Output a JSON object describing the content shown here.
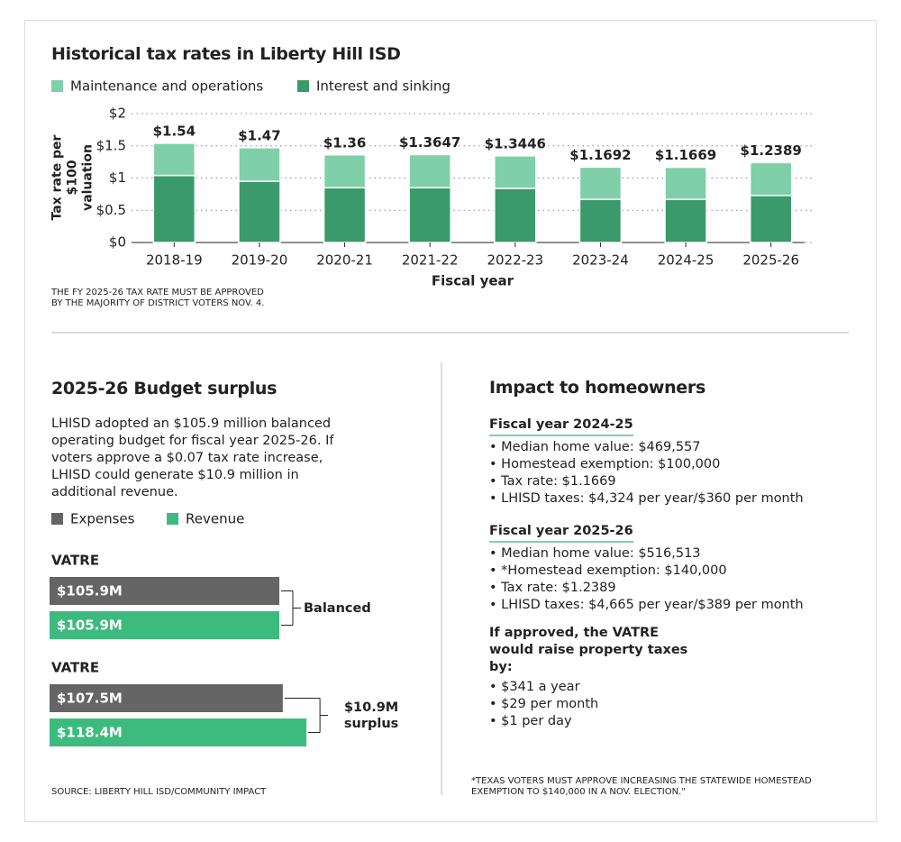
{
  "chart_data": [
    {
      "type": "stacked-bar",
      "title": "Historical tax rates in Liberty Hill ISD",
      "categories": [
        "2018-19",
        "2019-20",
        "2020-21",
        "2021-22",
        "2022-23",
        "2023-24",
        "2024-25",
        "2025-26"
      ],
      "series": [
        {
          "name": "Interest and sinking",
          "color": "#3a9a6b",
          "values": [
            1.04,
            0.95,
            0.85,
            0.85,
            0.84,
            0.67,
            0.67,
            0.73
          ]
        },
        {
          "name": "Maintenance and operations",
          "color": "#7fcfa8",
          "values": [
            0.5,
            0.52,
            0.51,
            0.5147,
            0.5046,
            0.4992,
            0.4969,
            0.5089
          ]
        }
      ],
      "legend_order": [
        1,
        0
      ],
      "totals": [
        1.54,
        1.47,
        1.36,
        1.3647,
        1.3446,
        1.1692,
        1.1669,
        1.2389
      ],
      "total_labels": [
        "$1.54",
        "$1.47",
        "$1.36",
        "$1.3647",
        "$1.3446",
        "$1.1692",
        "$1.1669",
        "$1.2389"
      ],
      "xlabel": "Fiscal year",
      "ylabel": "Tax rate per $100 valuation",
      "ylim": [
        0,
        2
      ],
      "yticks": [
        {
          "value": 0,
          "label": "$0"
        },
        {
          "value": 0.5,
          "label": "$0.5"
        },
        {
          "value": 1,
          "label": "$1"
        },
        {
          "value": 1.5,
          "label": "$1.5"
        },
        {
          "value": 2,
          "label": "$2"
        }
      ],
      "grid": true,
      "note": "THE FY 2025-26 TAX RATE MUST BE APPROVED BY THE MAJORITY OF DISTRICT VOTERS NOV. 4."
    },
    {
      "type": "hbar",
      "title": "2025-26 Budget surplus",
      "description": "LHISD adopted an $105.9 million balanced operating budget for fiscal year 2025-26. If voters approve a $0.07 tax rate increase, LHISD could generate $10.9 million in additional revenue.",
      "categories": [
        "VATRE",
        "VATRE"
      ],
      "series": [
        {
          "name": "Expenses",
          "color": "#666565",
          "values": [
            105.9,
            107.5
          ],
          "value_labels": [
            "$105.9M",
            "$107.5M"
          ]
        },
        {
          "name": "Revenue",
          "color": "#3dbb7e",
          "values": [
            105.9,
            118.4
          ],
          "value_labels": [
            "$105.9M",
            "$118.4M"
          ]
        }
      ],
      "annotations": [
        "Balanced",
        "$10.9M surplus"
      ],
      "source": "SOURCE: LIBERTY HILL ISD/COMMUNITY IMPACT"
    }
  ],
  "impact": {
    "title": "Impact to homeowners",
    "sections": [
      {
        "heading": "Fiscal year 2024-25",
        "items": [
          "Median home value: $469,557",
          "Homestead exemption: $100,000",
          "Tax rate: $1.1669",
          "LHISD taxes: $4,324 per year/$360 per month"
        ]
      },
      {
        "heading": "Fiscal year 2025-26",
        "items": [
          "Median home value: $516,513",
          "*Homestead exemption: $140,000",
          "Tax rate: $1.2389",
          "LHISD taxes: $4,665 per year/$389 per month"
        ]
      }
    ],
    "approval": {
      "heading": "If approved, the VATRE would raise property taxes by:",
      "items": [
        "$341 a year",
        "$29 per month",
        "$1 per day"
      ]
    },
    "footnote": "*TEXAS VOTERS MUST APPROVE INCREASING THE STATEWIDE HOMESTEAD EXEMPTION TO $140,000 IN A NOV. ELECTION.\""
  }
}
